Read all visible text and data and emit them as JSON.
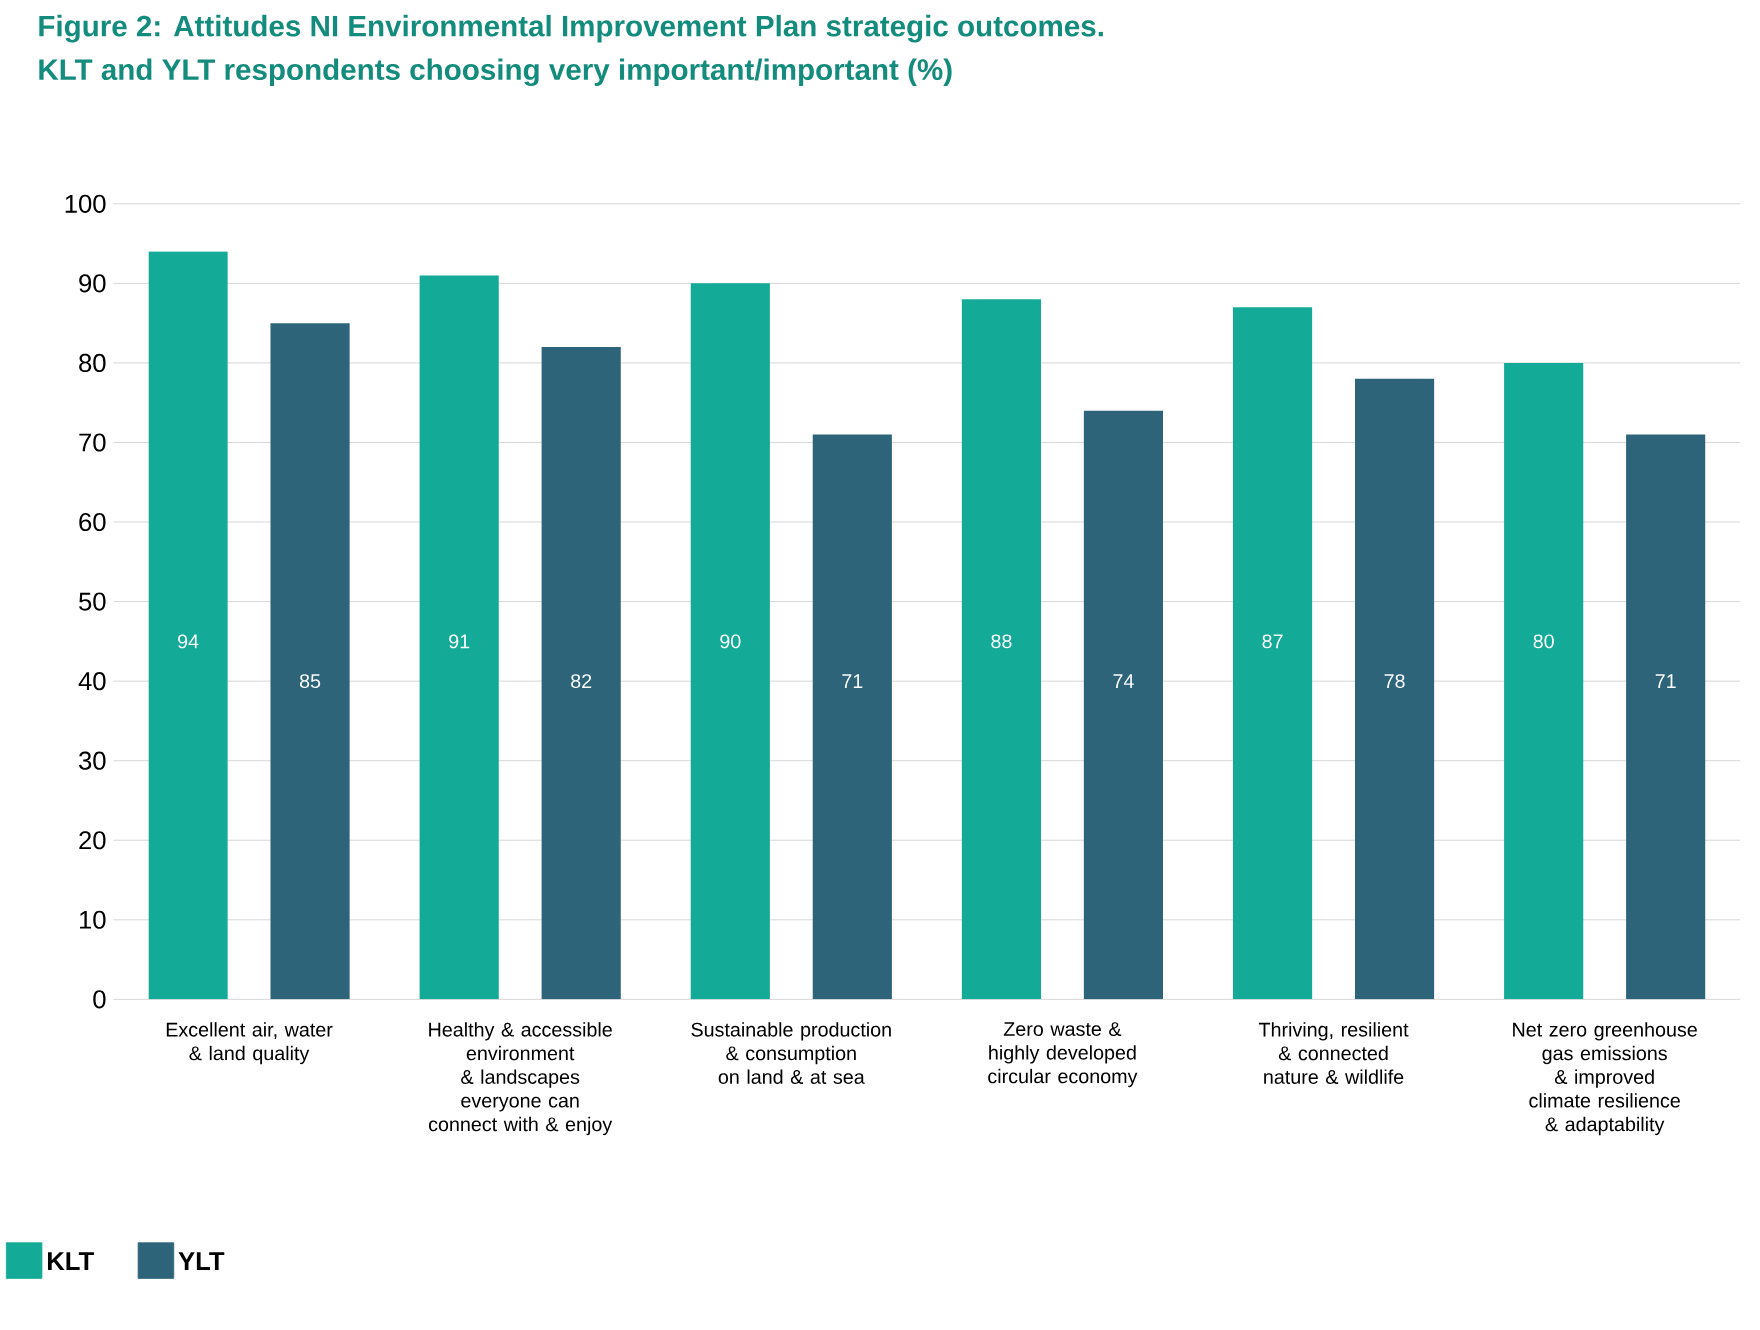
{
  "chart_data": {
    "type": "bar",
    "title": "Figure 2: Attitudes NI Environmental Improvement Plan strategic outcomes.",
    "subtitle": "KLT and YLT respondents choosing very important/important (%)",
    "categories": [
      "Excellent air, water & land quality",
      "Healthy & accessible environment & landscapes everyone can connect with & enjoy",
      "Sustainable production & consumption on land & at sea",
      "Zero waste & highly developed circular economy",
      "Thriving, resilient & connected nature & wildlife",
      "Net zero greenhouse gas emissions & improved climate resilience & adaptability"
    ],
    "series": [
      {
        "name": "KLT",
        "color": "#13ab98",
        "values": [
          94,
          91,
          90,
          88,
          87,
          80
        ]
      },
      {
        "name": "YLT",
        "color": "#2d6479",
        "values": [
          85,
          82,
          71,
          74,
          78,
          71
        ]
      }
    ],
    "ylim": [
      0,
      100
    ],
    "yticks": [
      0,
      10,
      20,
      30,
      40,
      50,
      60,
      70,
      80,
      90,
      100
    ],
    "grid": "y",
    "legend": "bottom left",
    "data_labels": true
  }
}
